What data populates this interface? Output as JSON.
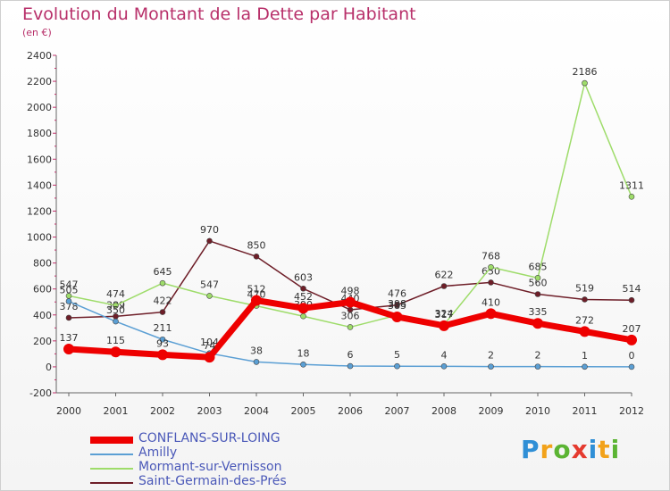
{
  "title": "Evolution du Montant de la Dette par Habitant",
  "subtitle": "(en €)",
  "logo": {
    "text": "Proxiti",
    "colors": [
      "#2f8fd6",
      "#f2a21a",
      "#5bb433",
      "#e53a2f",
      "#2f8fd6",
      "#f2a21a",
      "#5bb433"
    ]
  },
  "chart_data": {
    "type": "line",
    "x": [
      "2000",
      "2001",
      "2002",
      "2003",
      "2004",
      "2005",
      "2006",
      "2007",
      "2008",
      "2009",
      "2010",
      "2011",
      "2012"
    ],
    "ylim": [
      -200,
      2400
    ],
    "yticks": [
      -200,
      0,
      200,
      400,
      600,
      800,
      1000,
      1200,
      1400,
      1600,
      1800,
      2000,
      2200,
      2400
    ],
    "grid": false,
    "legend_position": "bottom-left",
    "series": [
      {
        "name": "Saint-Germain-des-Prés",
        "color": "#6e1e28",
        "values": [
          378,
          389,
          422,
          970,
          850,
          603,
          440,
          476,
          622,
          650,
          560,
          519,
          514
        ],
        "labels": [
          "378",
          "389",
          "422",
          "970",
          "850",
          "603",
          "440",
          "476",
          "622",
          "650",
          "560",
          "519",
          "514"
        ]
      },
      {
        "name": "Mormant-sur-Vernisson",
        "color": "#9edc6a",
        "values": [
          547,
          474,
          645,
          547,
          470,
          390,
          306,
          398,
          324,
          768,
          685,
          2186,
          1311
        ],
        "labels": [
          "547",
          "474",
          "645",
          "547",
          "470",
          "390",
          "306",
          "398",
          "324",
          "768",
          "685",
          "2186",
          "1311"
        ]
      },
      {
        "name": "Amilly",
        "color": "#5b9fd4",
        "values": [
          505,
          350,
          211,
          104,
          38,
          18,
          6,
          5,
          4,
          2,
          2,
          1,
          0
        ],
        "labels": [
          "505",
          "350",
          "211",
          "104",
          "38",
          "18",
          "6",
          "5",
          "4",
          "2",
          "2",
          "1",
          "0"
        ]
      },
      {
        "name": "CONFLANS-SUR-LOING",
        "color": "#ee0000",
        "values": [
          137,
          115,
          93,
          74,
          512,
          452,
          498,
          385,
          317,
          410,
          335,
          272,
          207
        ],
        "labels": [
          "137",
          "115",
          "93",
          "74",
          "512",
          "452",
          "498",
          "385",
          "317",
          "410",
          "335",
          "272",
          "207"
        ]
      }
    ]
  }
}
